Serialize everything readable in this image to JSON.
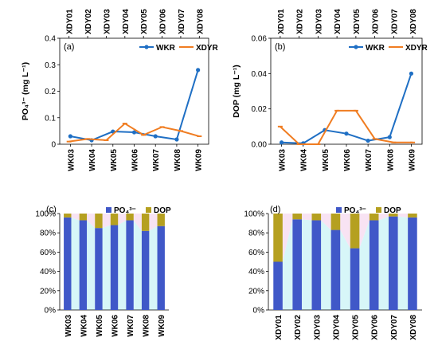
{
  "colors": {
    "wkr": "#1f6fc4",
    "xdyr": "#f07d22",
    "po4_bar": "#4058c8",
    "dop_bar": "#b5a020",
    "band_cyan": "#d7f6f8",
    "band_pink": "#f8e3f3"
  },
  "chart_data": [
    {
      "panel": "(a)",
      "type": "line",
      "ylabel": "PO₄³⁻ (mg L⁻¹)",
      "ylim": [
        0,
        0.4
      ],
      "yticks": [
        "0",
        "0.1",
        "0.2",
        "0.3",
        "0.4"
      ],
      "x_bottom": [
        "WK03",
        "WK04",
        "WK05",
        "WK06",
        "WK07",
        "WK08",
        "WK09"
      ],
      "x_top": [
        "XDY01",
        "XDY02",
        "XDY03",
        "XDY04",
        "XDY05",
        "XDY06",
        "XDY07",
        "XDY08"
      ],
      "legend_position": "top-right",
      "series": [
        {
          "name": "WKR",
          "axis": "bottom",
          "values": [
            0.03,
            0.015,
            0.048,
            0.045,
            0.03,
            0.018,
            0.28
          ]
        },
        {
          "name": "XDYR",
          "axis": "top",
          "values": [
            0.01,
            0.02,
            0.015,
            0.078,
            0.035,
            0.065,
            0.05,
            0.03
          ]
        }
      ]
    },
    {
      "panel": "(b)",
      "type": "line",
      "ylabel": "DOP (mg L⁻¹)",
      "ylim": [
        0,
        0.06
      ],
      "yticks": [
        "0.00",
        "0.02",
        "0.04",
        "0.06"
      ],
      "x_bottom": [
        "WK03",
        "WK04",
        "WK05",
        "WK06",
        "WK07",
        "WK08",
        "WK09"
      ],
      "x_top": [
        "XDY01",
        "XDY02",
        "XDY03",
        "XDY04",
        "XDY05",
        "XDY06",
        "XDY07",
        "XDY08"
      ],
      "legend_position": "top-right",
      "series": [
        {
          "name": "WKR",
          "axis": "bottom",
          "values": [
            0.001,
            0.0005,
            0.008,
            0.006,
            0.002,
            0.004,
            0.04
          ]
        },
        {
          "name": "XDYR",
          "axis": "top",
          "values": [
            0.01,
            0.0,
            0.0,
            0.019,
            0.019,
            0.003,
            0.001,
            0.001
          ]
        }
      ]
    },
    {
      "panel": "(c)",
      "type": "bar",
      "stacked": true,
      "categories": [
        "WK03",
        "WK04",
        "WK05",
        "WK06",
        "WK07",
        "WK08",
        "WK09"
      ],
      "ylim": [
        0,
        100
      ],
      "yticks": [
        "0%",
        "20%",
        "40%",
        "60%",
        "80%",
        "100%"
      ],
      "legend_position": "top-right",
      "series": [
        {
          "name": "PO₄³⁻",
          "values": [
            96,
            93,
            85,
            88,
            93,
            82,
            87
          ]
        },
        {
          "name": "DOP",
          "values": [
            4,
            7,
            15,
            12,
            7,
            18,
            13
          ]
        }
      ]
    },
    {
      "panel": "(d)",
      "type": "bar",
      "stacked": true,
      "categories": [
        "XDY01",
        "XDY02",
        "XDY03",
        "XDY04",
        "XDY05",
        "XDY06",
        "XDY07",
        "XDY08"
      ],
      "ylim": [
        0,
        100
      ],
      "yticks": [
        "0%",
        "20%",
        "40%",
        "60%",
        "80%",
        "100%"
      ],
      "legend_position": "top-right",
      "series": [
        {
          "name": "PO₄³⁻",
          "values": [
            50,
            94,
            93,
            83,
            64,
            93,
            97,
            96
          ]
        },
        {
          "name": "DOP",
          "values": [
            50,
            6,
            7,
            17,
            36,
            7,
            3,
            4
          ]
        }
      ]
    }
  ]
}
